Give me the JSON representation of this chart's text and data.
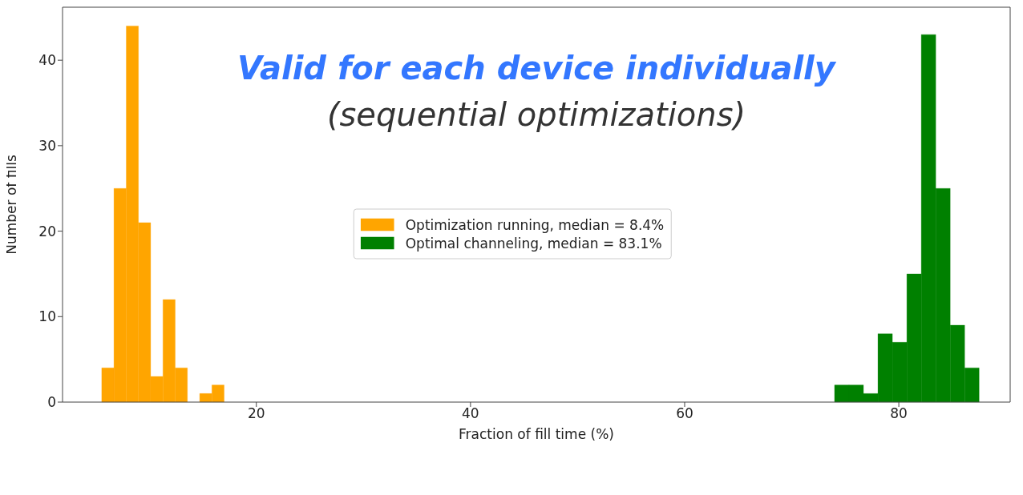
{
  "chart_data": {
    "type": "histogram",
    "title": "Valid for each device individually",
    "subtitle": "(sequential optimizations)",
    "xlabel": "Fraction of fill time (%)",
    "ylabel": "Number of fills",
    "bins": [
      5.56,
      6.7,
      7.85,
      8.99,
      10.13,
      11.28,
      12.42,
      13.56,
      14.71,
      15.85,
      16.99,
      74.0,
      75.35,
      76.7,
      78.05,
      79.4,
      80.75,
      82.1,
      83.45,
      84.8,
      86.15,
      87.5
    ],
    "series": [
      {
        "name": "Optimization running, median = 8.4%",
        "color": "#ffa500",
        "values": [
          4,
          25,
          44,
          21,
          3,
          12,
          4,
          0,
          1,
          2,
          null,
          null,
          null,
          null,
          null,
          null,
          null,
          null,
          null,
          null,
          null
        ]
      },
      {
        "name": "Optimal channeling, median = 83.1%",
        "color": "#008000",
        "values": [
          null,
          null,
          null,
          null,
          null,
          null,
          null,
          null,
          null,
          null,
          null,
          2,
          2,
          1,
          8,
          7,
          15,
          43,
          25,
          9,
          4
        ]
      }
    ],
    "xlim": [
      1.9,
      90.4
    ],
    "ylim": [
      0,
      46.2
    ],
    "xticks": [
      20,
      40,
      60,
      80
    ],
    "yticks": [
      0,
      10,
      20,
      30,
      40
    ],
    "grid": false,
    "legend": "center"
  }
}
